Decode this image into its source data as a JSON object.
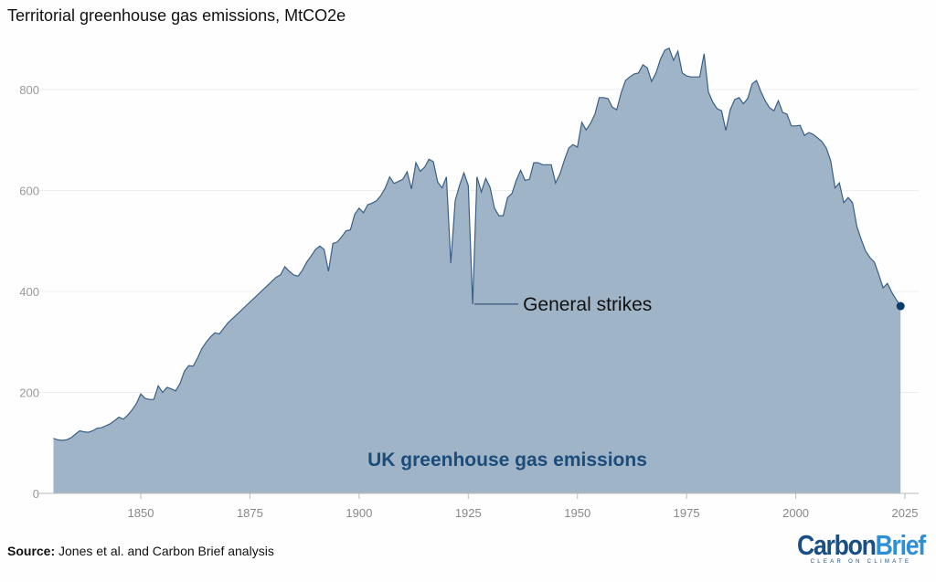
{
  "title": "Territorial greenhouse gas emissions, MtCO2e",
  "source_label": "Source:",
  "source_text": " Jones et al. and Carbon Brief analysis",
  "logo": {
    "part1": "Carbon",
    "part2": "Brief",
    "tagline": "CLEAR ON CLIMATE"
  },
  "colors": {
    "fill": "#a0b4c7",
    "line": "#3b5f86",
    "dot": "#0d3c6b",
    "label": "#1b4c7a",
    "grid": "#eeeeee"
  },
  "chart_data": {
    "type": "area",
    "title": "Territorial greenhouse gas emissions, MtCO2e",
    "series_label": "UK greenhouse gas emissions",
    "annotation": {
      "text": "General strikes",
      "x": 1926,
      "y": 375
    },
    "xlim": [
      1830,
      2025
    ],
    "ylim": [
      0,
      880
    ],
    "xticks": [
      1850,
      1875,
      1900,
      1925,
      1950,
      1975,
      2000,
      2025
    ],
    "yticks": [
      0,
      200,
      400,
      600,
      800
    ],
    "x": [
      1830,
      1831,
      1832,
      1833,
      1834,
      1835,
      1836,
      1837,
      1838,
      1839,
      1840,
      1841,
      1842,
      1843,
      1844,
      1845,
      1846,
      1847,
      1848,
      1849,
      1850,
      1851,
      1852,
      1853,
      1854,
      1855,
      1856,
      1857,
      1858,
      1859,
      1860,
      1861,
      1862,
      1863,
      1864,
      1865,
      1866,
      1867,
      1868,
      1869,
      1870,
      1881,
      1882,
      1883,
      1884,
      1885,
      1886,
      1887,
      1888,
      1889,
      1890,
      1891,
      1892,
      1893,
      1894,
      1895,
      1896,
      1897,
      1898,
      1899,
      1900,
      1901,
      1902,
      1903,
      1904,
      1905,
      1906,
      1907,
      1908,
      1909,
      1910,
      1911,
      1912,
      1913,
      1914,
      1915,
      1916,
      1917,
      1918,
      1919,
      1920,
      1921,
      1922,
      1923,
      1924,
      1925,
      1926,
      1927,
      1928,
      1929,
      1930,
      1931,
      1932,
      1933,
      1934,
      1935,
      1936,
      1937,
      1938,
      1939,
      1940,
      1941,
      1942,
      1943,
      1944,
      1945,
      1946,
      1947,
      1948,
      1949,
      1950,
      1951,
      1952,
      1953,
      1954,
      1955,
      1956,
      1957,
      1958,
      1959,
      1960,
      1961,
      1962,
      1963,
      1964,
      1965,
      1966,
      1967,
      1968,
      1969,
      1970,
      1971,
      1972,
      1973,
      1974,
      1975,
      1976,
      1977,
      1978,
      1979,
      1980,
      1981,
      1982,
      1983,
      1984,
      1985,
      1986,
      1987,
      1988,
      1989,
      1990,
      1991,
      1992,
      1993,
      1994,
      1995,
      1996,
      1997,
      1998,
      1999,
      2000,
      2001,
      2002,
      2003,
      2004,
      2005,
      2006,
      2007,
      2008,
      2009,
      2010,
      2011,
      2012,
      2013,
      2014,
      2015,
      2016,
      2017,
      2018,
      2019,
      2020,
      2021,
      2022,
      2023,
      2024
    ],
    "y": [
      109,
      106,
      105,
      106,
      110,
      117,
      124,
      122,
      121,
      124,
      129,
      130,
      134,
      138,
      144,
      151,
      147,
      155,
      165,
      178,
      197,
      188,
      186,
      186,
      213,
      200,
      210,
      207,
      203,
      218,
      242,
      253,
      252,
      268,
      287,
      300,
      310,
      318,
      316,
      327,
      338,
      428,
      433,
      449,
      440,
      433,
      430,
      442,
      458,
      470,
      483,
      490,
      483,
      440,
      495,
      498,
      508,
      520,
      522,
      553,
      565,
      556,
      572,
      575,
      580,
      590,
      605,
      627,
      614,
      618,
      622,
      637,
      603,
      655,
      638,
      646,
      662,
      657,
      617,
      605,
      627,
      456,
      580,
      610,
      635,
      610,
      375,
      627,
      597,
      624,
      606,
      565,
      550,
      550,
      586,
      594,
      620,
      640,
      620,
      622,
      655,
      655,
      651,
      651,
      651,
      615,
      633,
      660,
      684,
      691,
      686,
      735,
      720,
      733,
      751,
      784,
      784,
      782,
      765,
      760,
      793,
      818,
      825,
      831,
      833,
      849,
      843,
      816,
      833,
      860,
      878,
      882,
      858,
      876,
      833,
      827,
      825,
      825,
      825,
      871,
      795,
      775,
      762,
      758,
      719,
      760,
      780,
      784,
      772,
      782,
      811,
      818,
      796,
      778,
      764,
      758,
      778,
      755,
      751,
      728,
      728,
      729,
      709,
      715,
      711,
      704,
      697,
      684,
      659,
      605,
      615,
      576,
      586,
      576,
      528,
      503,
      480,
      467,
      458,
      434,
      407,
      416,
      398,
      384,
      371
    ]
  }
}
